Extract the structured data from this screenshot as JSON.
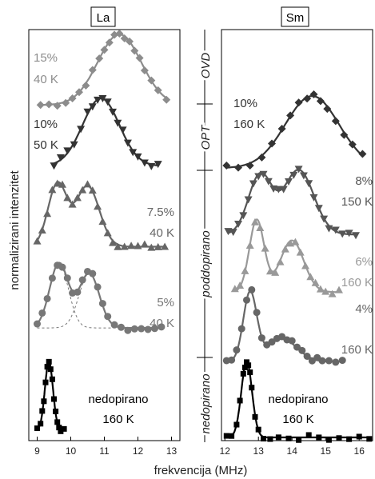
{
  "panels": [
    {
      "title": "La"
    },
    {
      "title": "Sm"
    }
  ],
  "ylabel": "normalizirani intenzitet",
  "xlabel": "frekvencija (MHz)",
  "phases": [
    "OVD",
    "OPT",
    "poddopirano",
    "nedopirano"
  ],
  "chart_data": [
    {
      "type": "scatter",
      "panel": "La",
      "title": "La",
      "xlabel": "frekvencija (MHz)",
      "ylabel": "normalizirani intenzitet",
      "xlim": [
        8.75,
        13.25
      ],
      "xticks": [
        9,
        10,
        11,
        12,
        13
      ],
      "grid": false,
      "series": [
        {
          "label": [
            "15%",
            "40 K"
          ],
          "color": "#8c8c8c",
          "marker": "diamond",
          "fit": "gauss",
          "center": 11.45,
          "sigma": 0.65,
          "base": 0.04,
          "amp": 0.96,
          "x": [
            9.1,
            9.35,
            9.6,
            9.85,
            10.05,
            10.25,
            10.45,
            10.65,
            10.85,
            11.0,
            11.15,
            11.3,
            11.45,
            11.6,
            11.75,
            11.9,
            12.05,
            12.2,
            12.4,
            12.6,
            12.85
          ]
        },
        {
          "label": [
            "10%",
            "50 K"
          ],
          "color": "#333333",
          "marker": "tri-down",
          "fit": "gauss",
          "center": 10.9,
          "sigma": 0.55,
          "base": 0.08,
          "amp": 0.92,
          "x": [
            9.5,
            9.7,
            9.9,
            10.1,
            10.3,
            10.5,
            10.65,
            10.8,
            10.95,
            11.1,
            11.25,
            11.4,
            11.55,
            11.7,
            11.85,
            12.0,
            12.2,
            12.4,
            12.6
          ]
        },
        {
          "label": [
            "7.5%",
            "40 K"
          ],
          "color": "#666666",
          "marker": "tri-up",
          "fit": "double",
          "peaks": [
            {
              "center": 9.6,
              "sigma": 0.28,
              "amp": 0.82
            },
            {
              "center": 10.5,
              "sigma": 0.35,
              "amp": 0.8
            }
          ],
          "base": 0.1,
          "x": [
            9.0,
            9.15,
            9.3,
            9.45,
            9.6,
            9.75,
            9.9,
            10.05,
            10.2,
            10.35,
            10.5,
            10.65,
            10.8,
            10.95,
            11.1,
            11.25,
            11.4,
            11.6,
            11.8,
            12.0,
            12.2,
            12.4,
            12.6,
            12.8
          ]
        },
        {
          "label": [
            "5%",
            "40 K"
          ],
          "color": "#777777",
          "marker": "circle",
          "fit": "double",
          "peaks": [
            {
              "center": 9.65,
              "sigma": 0.28,
              "amp": 0.85
            },
            {
              "center": 10.55,
              "sigma": 0.3,
              "amp": 0.72
            }
          ],
          "base": 0.02,
          "x": [
            9.0,
            9.15,
            9.3,
            9.45,
            9.6,
            9.75,
            9.9,
            10.05,
            10.2,
            10.35,
            10.5,
            10.65,
            10.8,
            10.95,
            11.1,
            11.3,
            11.5,
            11.7,
            11.9,
            12.1,
            12.3,
            12.5,
            12.7
          ]
        },
        {
          "label": [
            "nedopirano",
            "160 K"
          ],
          "color": "#000000",
          "marker": "square",
          "fit": "gauss",
          "center": 9.35,
          "sigma": 0.12,
          "base": 0.02,
          "amp": 0.98,
          "x": [
            9.0,
            9.1,
            9.15,
            9.2,
            9.25,
            9.3,
            9.35,
            9.4,
            9.45,
            9.5,
            9.55,
            9.6,
            9.65,
            9.7,
            9.8
          ]
        }
      ]
    },
    {
      "type": "scatter",
      "panel": "Sm",
      "title": "Sm",
      "xlabel": "frekvencija (MHz)",
      "xlim": [
        11.9,
        16.4
      ],
      "xticks": [
        12,
        13,
        14,
        15,
        16
      ],
      "grid": false,
      "series": [
        {
          "label": [
            "10%",
            "160 K"
          ],
          "color": "#333333",
          "marker": "diamond",
          "fit": "gauss",
          "center": 14.6,
          "sigma": 0.8,
          "base": 0.02,
          "amp": 0.98,
          "x": [
            12.05,
            12.4,
            12.75,
            13.1,
            13.4,
            13.7,
            13.95,
            14.2,
            14.45,
            14.65,
            14.85,
            15.05,
            15.3,
            15.55,
            15.8,
            16.1
          ]
        },
        {
          "label": [
            "8%",
            "150 K"
          ],
          "color": "#555555",
          "marker": "tri-down",
          "fit": "double",
          "peaks": [
            {
              "center": 13.05,
              "sigma": 0.35,
              "amp": 0.78
            },
            {
              "center": 14.2,
              "sigma": 0.45,
              "amp": 0.85
            }
          ],
          "base": 0.05,
          "x": [
            12.1,
            12.25,
            12.4,
            12.55,
            12.7,
            12.85,
            13.0,
            13.15,
            13.3,
            13.45,
            13.6,
            13.75,
            13.9,
            14.05,
            14.2,
            14.35,
            14.5,
            14.65,
            14.8,
            14.95,
            15.1,
            15.3,
            15.5,
            15.7,
            15.9
          ]
        },
        {
          "label": [
            "6%",
            "160 K"
          ],
          "color": "#999999",
          "marker": "tri-up",
          "fit": "double",
          "peaks": [
            {
              "center": 12.95,
              "sigma": 0.22,
              "amp": 0.95
            },
            {
              "center": 14.0,
              "sigma": 0.35,
              "amp": 0.68
            }
          ],
          "base": 0.05,
          "x": [
            12.3,
            12.45,
            12.6,
            12.75,
            12.9,
            13.05,
            13.2,
            13.35,
            13.5,
            13.65,
            13.8,
            13.95,
            14.1,
            14.25,
            14.4,
            14.55,
            14.7,
            14.85,
            15.0,
            15.2,
            15.4
          ]
        },
        {
          "label": [
            "4%",
            "160 K"
          ],
          "color": "#666666",
          "marker": "circle",
          "fit": "double",
          "peaks": [
            {
              "center": 12.75,
              "sigma": 0.2,
              "amp": 0.9
            },
            {
              "center": 13.7,
              "sigma": 0.45,
              "amp": 0.3
            }
          ],
          "base": 0.05,
          "x": [
            12.05,
            12.2,
            12.35,
            12.5,
            12.65,
            12.8,
            12.95,
            13.1,
            13.25,
            13.4,
            13.55,
            13.7,
            13.85,
            14.0,
            14.15,
            14.3,
            14.45,
            14.6,
            14.75,
            14.9,
            15.1,
            15.3,
            15.5
          ]
        },
        {
          "label": [
            "nedopirano",
            "160 K"
          ],
          "color": "#000000",
          "marker": "square",
          "fit": "gauss",
          "center": 12.65,
          "sigma": 0.16,
          "base": 0.01,
          "amp": 0.99,
          "x": [
            12.05,
            12.2,
            12.35,
            12.45,
            12.55,
            12.6,
            12.65,
            12.7,
            12.75,
            12.8,
            12.9,
            13.0,
            13.15,
            13.35,
            13.6,
            13.9,
            14.2,
            14.5,
            14.8,
            15.1,
            15.4,
            15.7,
            16.0,
            16.3
          ]
        }
      ]
    }
  ]
}
